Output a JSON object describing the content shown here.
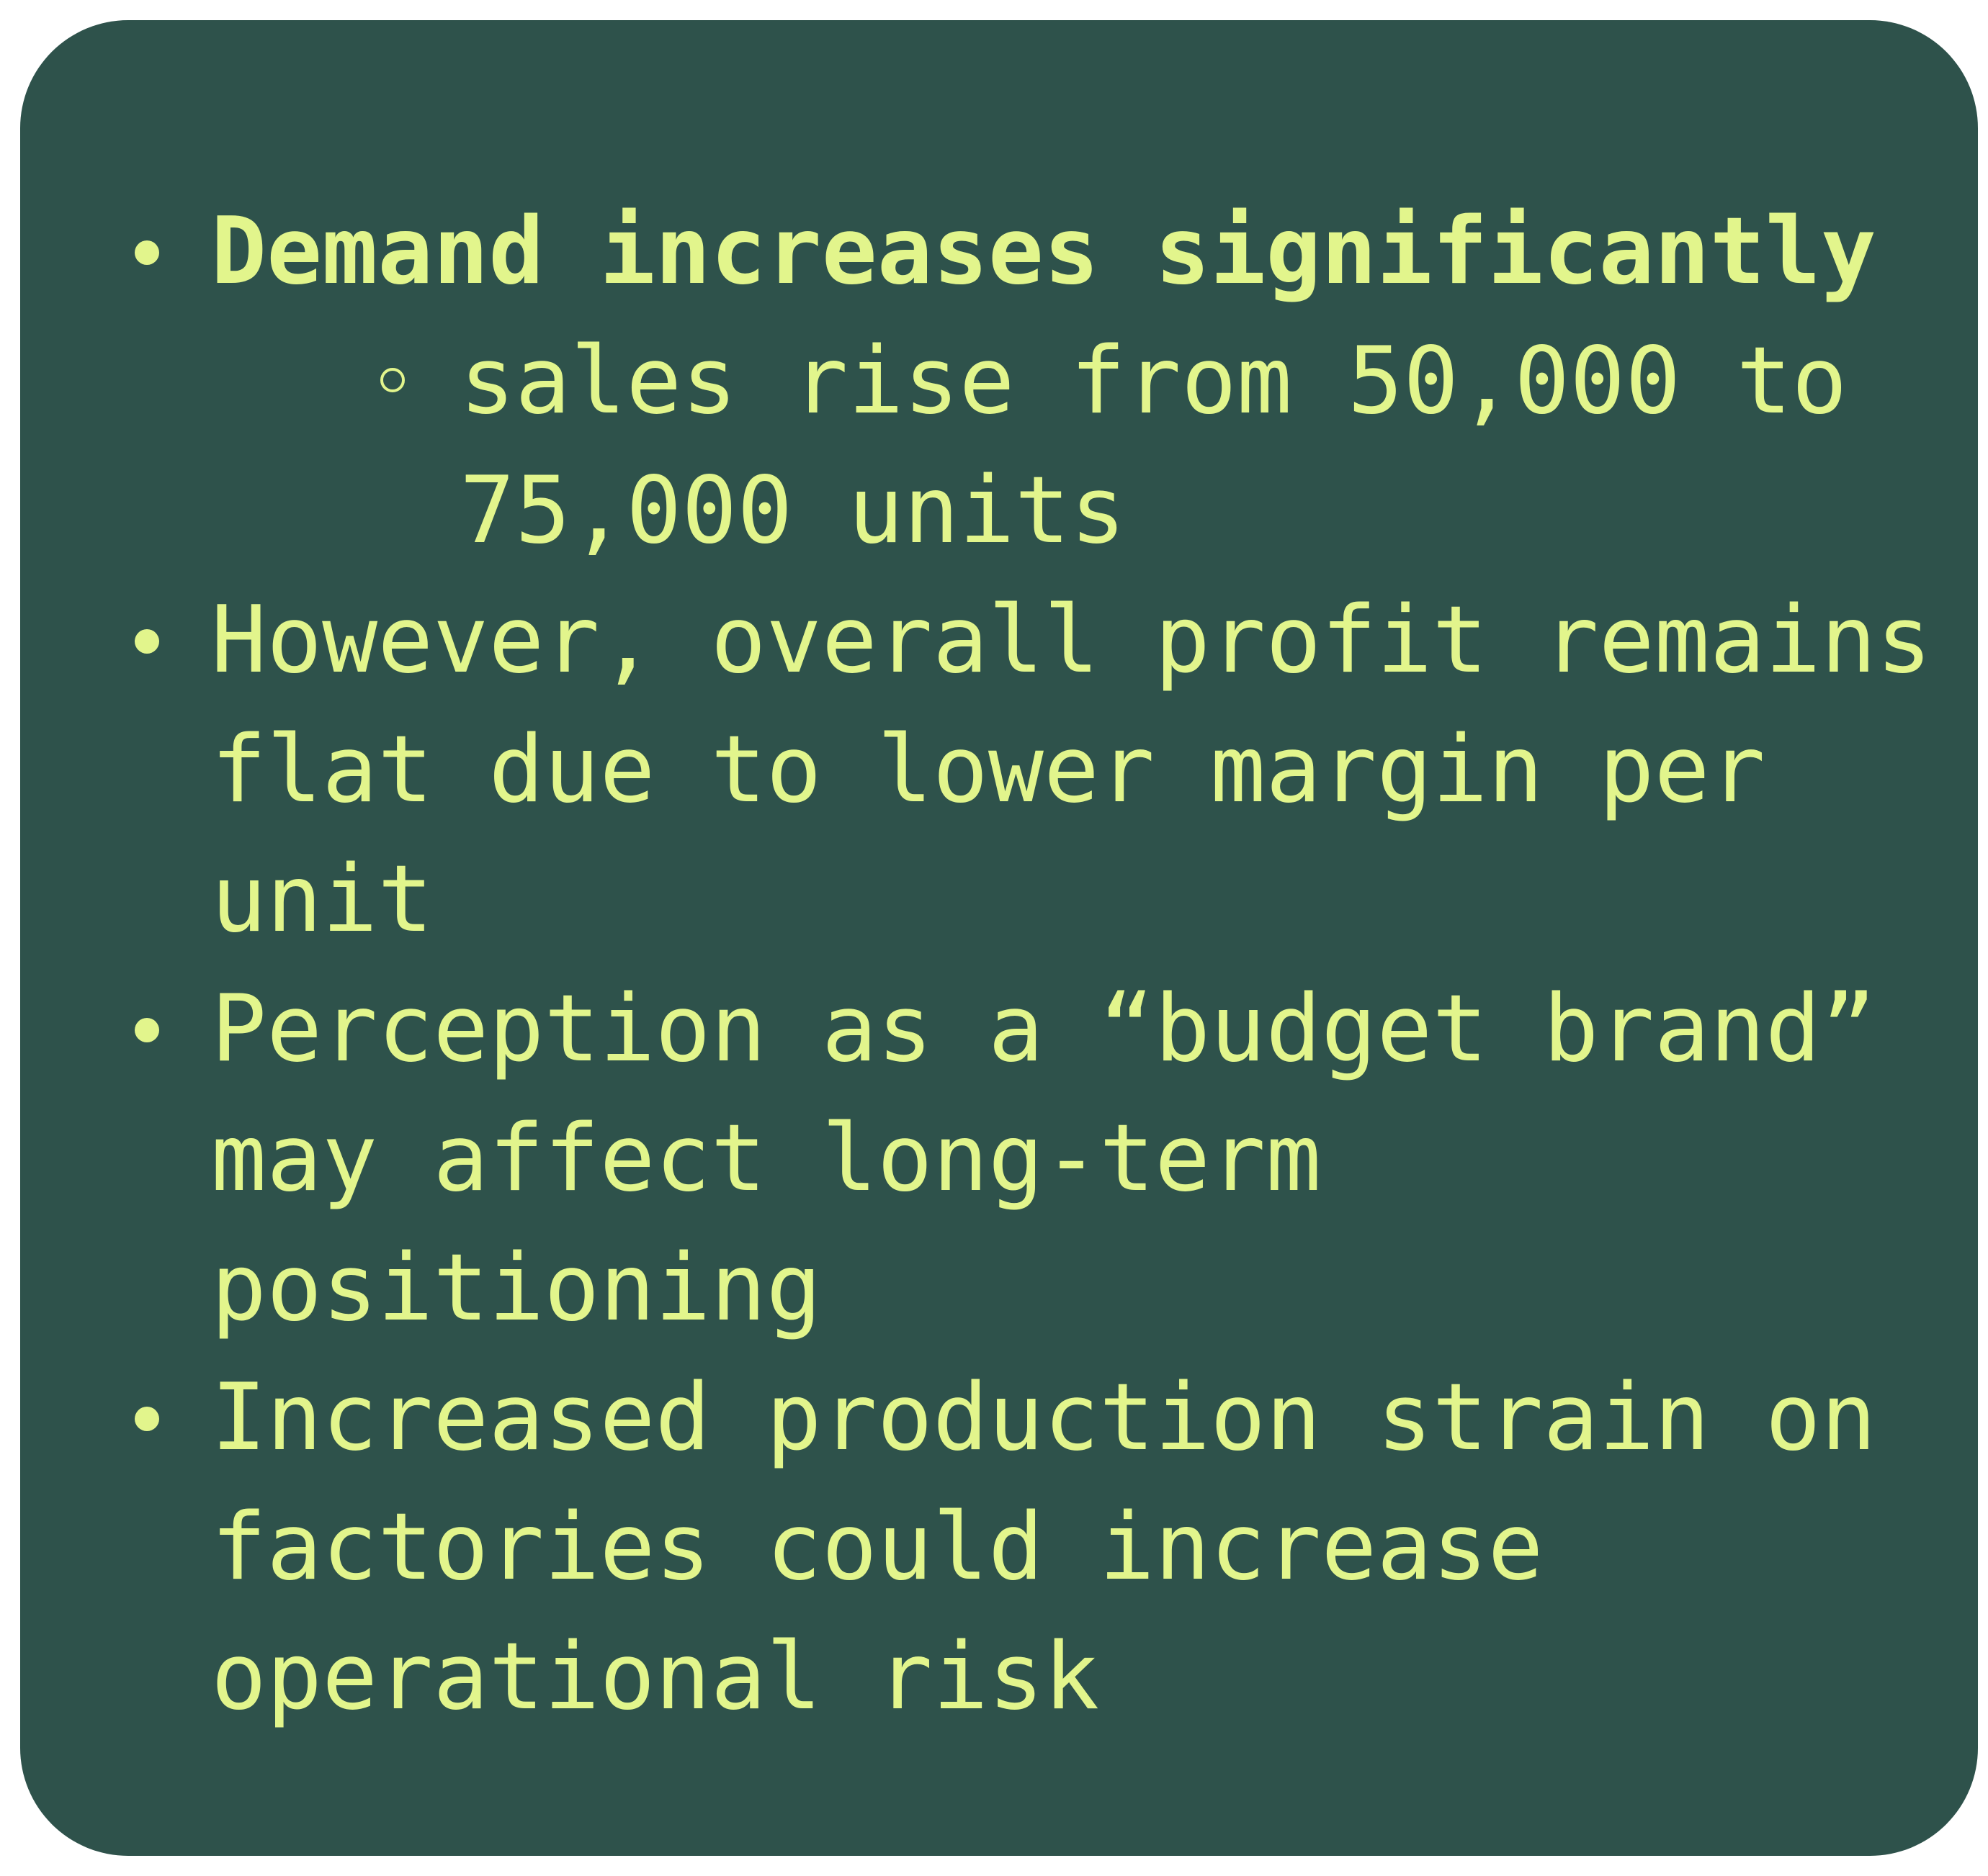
{
  "items": [
    {
      "lines": [
        "Demand increases significantly"
      ],
      "sub": {
        "lines": [
          "sales rise from 50,000 to",
          "75,000 units"
        ]
      }
    },
    {
      "lines": [
        "However, overall profit remains",
        "flat due to lower margin per",
        "unit"
      ]
    },
    {
      "lines": [
        "Perception as a “budget brand”",
        "may affect long-term",
        "positioning"
      ]
    },
    {
      "lines": [
        "Increased production strain on",
        "factories could increase",
        "operational risk"
      ]
    }
  ],
  "colors": {
    "card_background": "#2e524b",
    "text": "#e2f58c",
    "page_background": "#ffffff"
  }
}
